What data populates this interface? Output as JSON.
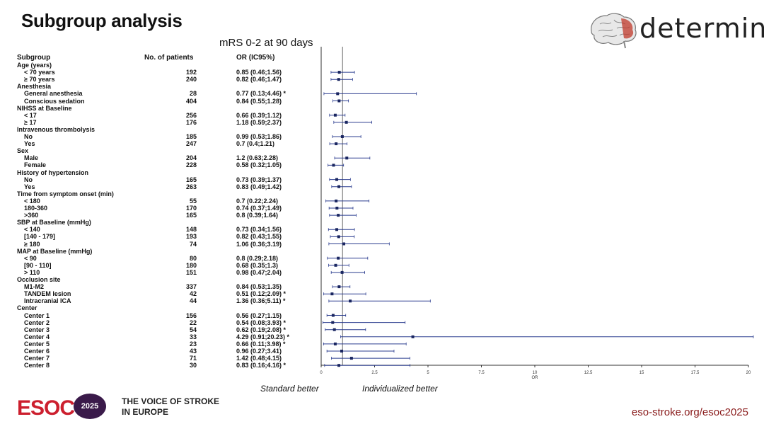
{
  "title": "Subgroup analysis",
  "brand": "determine",
  "subtitle": "mRS 0-2 at 90 days",
  "columns": {
    "subgroup": "Subgroup",
    "n": "No. of patients",
    "or": "OR (IC95%)"
  },
  "rows": [
    {
      "label": "Age (years)",
      "header": true
    },
    {
      "label": "< 70 years",
      "n": "192",
      "or": "0.85 (0.46;1.56)",
      "est": 0.85,
      "lo": 0.46,
      "hi": 1.56
    },
    {
      "label": "≥ 70 years",
      "n": "240",
      "or": "0.82 (0.46;1.47)",
      "est": 0.82,
      "lo": 0.46,
      "hi": 1.47
    },
    {
      "label": "Anesthesia",
      "header": true
    },
    {
      "label": "General anesthesia",
      "n": "28",
      "or": "0.77 (0.13;4.46) *",
      "est": 0.77,
      "lo": 0.13,
      "hi": 4.46
    },
    {
      "label": "Conscious sedation",
      "n": "404",
      "or": "0.84 (0.55;1.28)",
      "est": 0.84,
      "lo": 0.55,
      "hi": 1.28
    },
    {
      "label": "NIHSS at Baseline",
      "header": true
    },
    {
      "label": "< 17",
      "n": "256",
      "or": "0.66 (0.39;1.12)",
      "est": 0.66,
      "lo": 0.39,
      "hi": 1.12
    },
    {
      "label": "≥ 17",
      "n": "176",
      "or": "1.18 (0.59;2.37)",
      "est": 1.18,
      "lo": 0.59,
      "hi": 2.37
    },
    {
      "label": "Intravenous thrombolysis",
      "header": true
    },
    {
      "label": "No",
      "n": "185",
      "or": "0.99 (0.53;1.86)",
      "est": 0.99,
      "lo": 0.53,
      "hi": 1.86
    },
    {
      "label": "Yes",
      "n": "247",
      "or": "0.7 (0.4;1.21)",
      "est": 0.7,
      "lo": 0.4,
      "hi": 1.21
    },
    {
      "label": "Sex",
      "header": true
    },
    {
      "label": "Male",
      "n": "204",
      "or": "1.2 (0.63;2.28)",
      "est": 1.2,
      "lo": 0.63,
      "hi": 2.28
    },
    {
      "label": "Female",
      "n": "228",
      "or": "0.58 (0.32;1.05)",
      "est": 0.58,
      "lo": 0.32,
      "hi": 1.05
    },
    {
      "label": "History of hypertension",
      "header": true
    },
    {
      "label": "No",
      "n": "165",
      "or": "0.73 (0.39;1.37)",
      "est": 0.73,
      "lo": 0.39,
      "hi": 1.37
    },
    {
      "label": "Yes",
      "n": "263",
      "or": "0.83 (0.49;1.42)",
      "est": 0.83,
      "lo": 0.49,
      "hi": 1.42
    },
    {
      "label": "Time from symptom onset (min)",
      "header": true
    },
    {
      "label": "< 180",
      "n": "55",
      "or": "0.7 (0.22;2.24)",
      "est": 0.7,
      "lo": 0.22,
      "hi": 2.24
    },
    {
      "label": "180-360",
      "n": "170",
      "or": "0.74 (0.37;1.49)",
      "est": 0.74,
      "lo": 0.37,
      "hi": 1.49
    },
    {
      "label": ">360",
      "n": "165",
      "or": "0.8 (0.39;1.64)",
      "est": 0.8,
      "lo": 0.39,
      "hi": 1.64
    },
    {
      "label": "SBP at Baseline (mmHg)",
      "header": true
    },
    {
      "label": "< 140",
      "n": "148",
      "or": "0.73 (0.34;1.56)",
      "est": 0.73,
      "lo": 0.34,
      "hi": 1.56
    },
    {
      "label": "[140 - 179]",
      "n": "193",
      "or": "0.82 (0.43;1.55)",
      "est": 0.82,
      "lo": 0.43,
      "hi": 1.55
    },
    {
      "label": "≥ 180",
      "n": "74",
      "or": "1.06 (0.36;3.19)",
      "est": 1.06,
      "lo": 0.36,
      "hi": 3.19
    },
    {
      "label": "MAP at Baseline (mmHg)",
      "header": true
    },
    {
      "label": "< 90",
      "n": "80",
      "or": "0.8 (0.29;2.18)",
      "est": 0.8,
      "lo": 0.29,
      "hi": 2.18
    },
    {
      "label": "[90 - 110]",
      "n": "180",
      "or": "0.68 (0.35;1.3)",
      "est": 0.68,
      "lo": 0.35,
      "hi": 1.3
    },
    {
      "label": "> 110",
      "n": "151",
      "or": "0.98 (0.47;2.04)",
      "est": 0.98,
      "lo": 0.47,
      "hi": 2.04
    },
    {
      "label": "Occlusion site",
      "header": true
    },
    {
      "label": "M1-M2",
      "n": "337",
      "or": "0.84 (0.53;1.35)",
      "est": 0.84,
      "lo": 0.53,
      "hi": 1.35
    },
    {
      "label": "TANDEM lesion",
      "n": "42",
      "or": "0.51 (0.12;2.09) *",
      "est": 0.51,
      "lo": 0.12,
      "hi": 2.09
    },
    {
      "label": "Intracranial ICA",
      "n": "44",
      "or": "1.36 (0.36;5.11) *",
      "est": 1.36,
      "lo": 0.36,
      "hi": 5.11
    },
    {
      "label": "Center",
      "header": true
    },
    {
      "label": "Center 1",
      "n": "156",
      "or": "0.56 (0.27;1.15)",
      "est": 0.56,
      "lo": 0.27,
      "hi": 1.15
    },
    {
      "label": "Center 2",
      "n": "22",
      "or": "0.54 (0.08;3.93) *",
      "est": 0.54,
      "lo": 0.08,
      "hi": 3.93
    },
    {
      "label": "Center 3",
      "n": "54",
      "or": "0.62 (0.19;2.08) *",
      "est": 0.62,
      "lo": 0.19,
      "hi": 2.08
    },
    {
      "label": "Center 4",
      "n": "33",
      "or": "4.29 (0.91;20.23) *",
      "est": 4.29,
      "lo": 0.91,
      "hi": 20.23
    },
    {
      "label": "Center 5",
      "n": "23",
      "or": "0.66 (0.11;3.98) *",
      "est": 0.66,
      "lo": 0.11,
      "hi": 3.98
    },
    {
      "label": "Center 6",
      "n": "43",
      "or": "0.96 (0.27;3.41)",
      "est": 0.96,
      "lo": 0.27,
      "hi": 3.41
    },
    {
      "label": "Center 7",
      "n": "71",
      "or": "1.42 (0.48;4.15)",
      "est": 1.42,
      "lo": 0.48,
      "hi": 4.15
    },
    {
      "label": "Center 8",
      "n": "30",
      "or": "0.83 (0.16;4.16) *",
      "est": 0.83,
      "lo": 0.16,
      "hi": 4.16
    }
  ],
  "chart_data": {
    "type": "forest",
    "xlabel": "OR",
    "xlim": [
      0,
      20
    ],
    "xticks": [
      "0",
      "2.5",
      "5",
      "7.5",
      "10",
      "12.5",
      "15",
      "17.5",
      "20"
    ],
    "reference_line": 1,
    "legend": {
      "left": "Standard better",
      "right": "Individualized better"
    },
    "colors": {
      "ci": "#2b3d8f",
      "point": "#1a2660"
    }
  },
  "footer": {
    "esoc": "ESOC",
    "year": "2025",
    "voice_line1": "THE VOICE OF STROKE",
    "voice_line2": "IN EUROPE",
    "url": "eso-stroke.org/esoc2025"
  }
}
